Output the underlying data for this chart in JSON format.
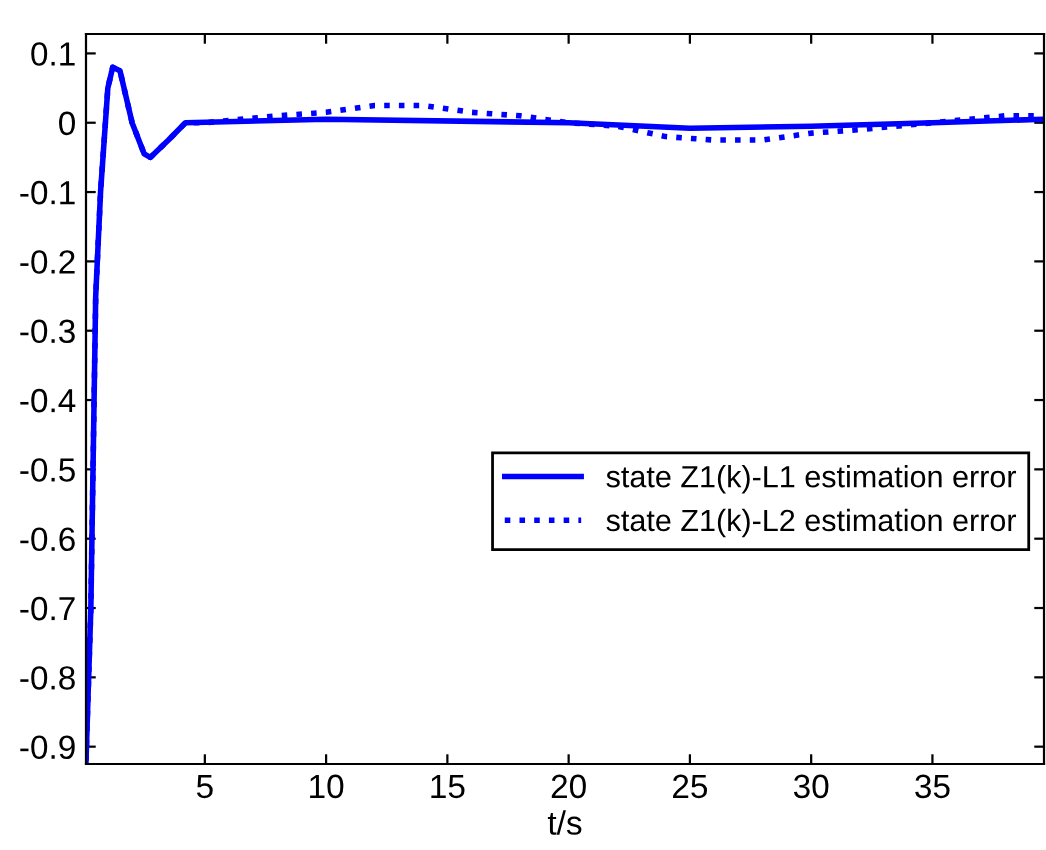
{
  "chart_data": {
    "type": "line",
    "xlabel": "t/s",
    "xlim": [
      0.1,
      39.6
    ],
    "xticks": [
      5,
      10,
      15,
      20,
      25,
      30,
      35
    ],
    "ylim": [
      -0.925,
      0.128
    ],
    "yticks": [
      0.1,
      0,
      -0.1,
      -0.2,
      -0.3,
      -0.4,
      -0.5,
      -0.6,
      -0.7,
      -0.8,
      -0.9
    ],
    "grid": false,
    "legend": "right",
    "marker": "none",
    "series": [
      {
        "name": "state Z1(k)-L1 estimation error",
        "color": "#0000ff",
        "line_style": "solid",
        "x": [
          0.1,
          0.3,
          0.5,
          0.7,
          0.8,
          1.0,
          1.2,
          1.5,
          2.0,
          2.5,
          2.75,
          3.5,
          4.2,
          10,
          20,
          25,
          30,
          35,
          39.6
        ],
        "values": [
          -0.92,
          -0.7,
          -0.25,
          -0.1,
          -0.05,
          0.05,
          0.08,
          0.075,
          0.0,
          -0.045,
          -0.05,
          -0.025,
          0.0,
          0.005,
          0.0,
          -0.008,
          -0.005,
          0.0,
          0.005
        ]
      },
      {
        "name": "state Z1(k)-L2 estimation error",
        "color": "#0000ff",
        "line_style": "dotted",
        "x": [
          0.1,
          0.3,
          0.5,
          0.7,
          0.8,
          1.0,
          1.2,
          1.5,
          2.0,
          2.5,
          2.75,
          3.5,
          4.2,
          5,
          8,
          10,
          12,
          14,
          16,
          18,
          20,
          22,
          24,
          26,
          28,
          30,
          32,
          35,
          38,
          39.6
        ],
        "values": [
          -0.92,
          -0.7,
          -0.25,
          -0.1,
          -0.05,
          0.05,
          0.08,
          0.075,
          0.0,
          -0.045,
          -0.05,
          -0.025,
          0.0,
          0.0,
          0.01,
          0.015,
          0.025,
          0.025,
          0.015,
          0.01,
          0.0,
          -0.005,
          -0.02,
          -0.025,
          -0.025,
          -0.015,
          -0.01,
          0.0,
          0.01,
          0.01
        ]
      }
    ]
  }
}
